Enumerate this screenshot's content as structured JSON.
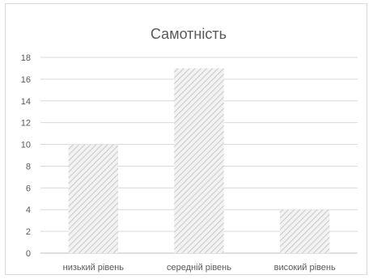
{
  "chart_data": {
    "type": "bar",
    "title": "Самотність",
    "categories": [
      "низький рівень",
      "середній рівень",
      "високий рівень"
    ],
    "values": [
      10,
      17,
      4
    ],
    "xlabel": "",
    "ylabel": "",
    "ylim": [
      0,
      18
    ],
    "yticks": [
      "0",
      "2",
      "4",
      "6",
      "8",
      "10",
      "12",
      "14",
      "16",
      "18"
    ],
    "grid": true,
    "legend": "none",
    "colors": {
      "bar_fill": "#f2f2f2",
      "bar_hatch": "#bfbfbf",
      "gridline": "#d9d9d9",
      "axis": "#bfbfbf",
      "text": "#595959"
    }
  }
}
